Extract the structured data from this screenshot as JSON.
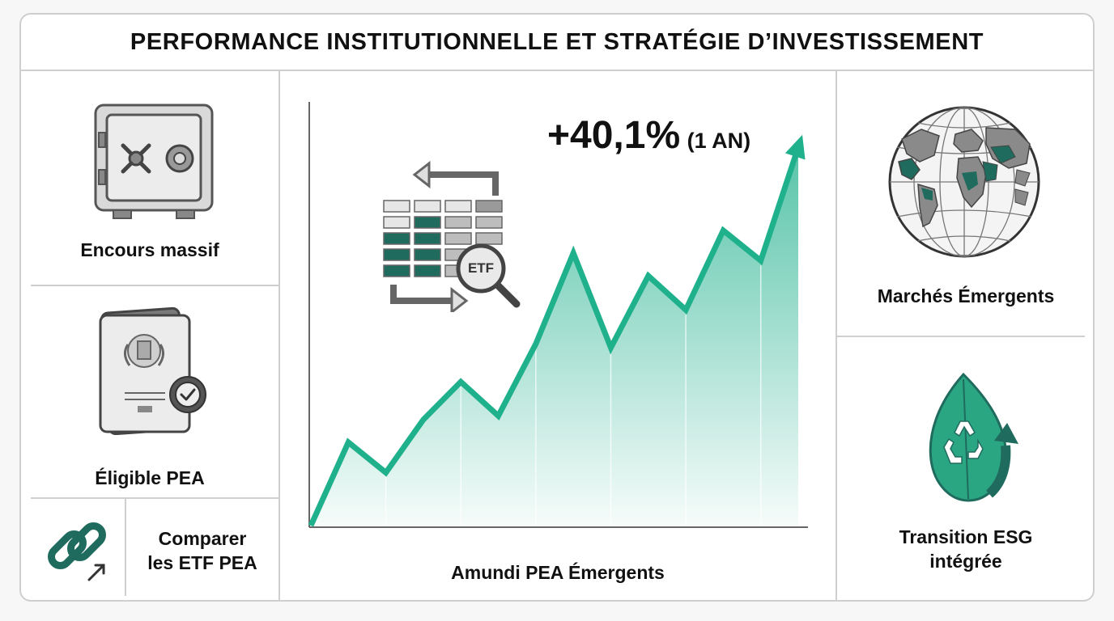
{
  "header": {
    "title": "PERFORMANCE INSTITUTIONNELLE ET STRATÉGIE D’INVESTISSEMENT"
  },
  "left": {
    "encours_label": "Encours massif",
    "pea_label": "Éligible PEA",
    "compare_label_line1": "Comparer",
    "compare_label_line2": "les ETF PEA"
  },
  "center": {
    "performance_value": "+40,1%",
    "performance_period": "(1 AN)",
    "etf_badge": "ETF",
    "fund_label": "Amundi PEA Émergents"
  },
  "right": {
    "emerging_label": "Marchés Émergents",
    "esg_label_line1": "Transition ESG",
    "esg_label_line2": "intégrée"
  },
  "chart_data": {
    "type": "area",
    "title": "",
    "xlabel": "",
    "ylabel": "",
    "annotation": "+40,1% (1 AN)",
    "series": [
      {
        "values": [
          0,
          22,
          14,
          28,
          38,
          29,
          48,
          72,
          47,
          66,
          57,
          78,
          70,
          100
        ]
      }
    ]
  },
  "colors": {
    "accent": "#1fb08c",
    "dark_teal": "#1f6b5e",
    "border": "#cfcfcf",
    "icon_gray": "#8c8c8c"
  },
  "icons": {
    "vault": "safe-icon",
    "passport": "passport-icon",
    "link": "chain-link-icon",
    "etf": "etf-table-icon",
    "globe": "globe-icon",
    "esg": "recycle-leaf-icon"
  }
}
